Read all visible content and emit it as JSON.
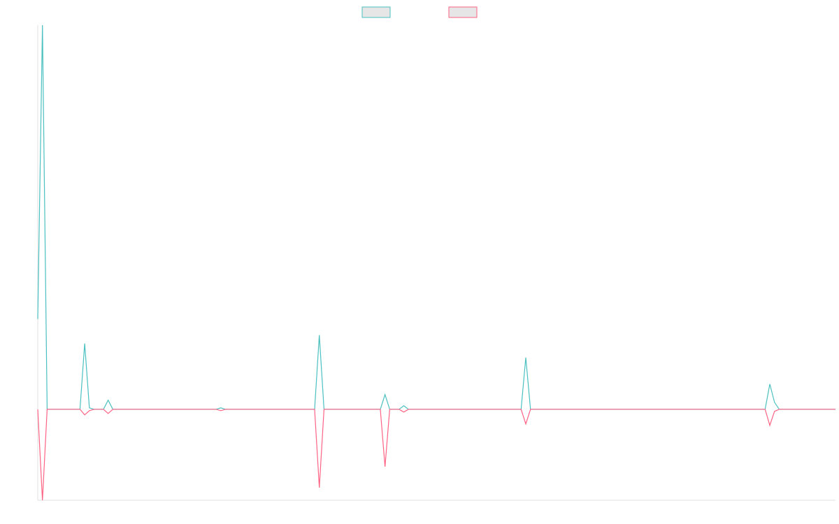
{
  "chart_data": {
    "type": "line",
    "x": [
      0,
      1,
      2,
      9,
      10,
      11,
      12,
      14,
      15,
      16,
      38,
      39,
      40,
      59,
      60,
      61,
      73,
      74,
      75,
      77,
      78,
      79,
      103,
      104,
      105,
      155,
      156,
      157,
      158,
      170
    ],
    "series": [
      {
        "color": "#4bc0c0",
        "values": [
          12.9,
          54.9,
          0,
          0,
          9.4,
          0.2,
          0,
          0,
          1.3,
          0,
          0,
          0.2,
          0,
          0,
          10.6,
          0,
          0,
          2.1,
          0,
          0,
          0.5,
          0,
          0,
          7.4,
          0,
          0,
          3.6,
          1.0,
          0,
          0
        ]
      },
      {
        "color": "#ff6384",
        "values": [
          0,
          -13.0,
          0,
          0,
          -0.8,
          -0.2,
          0,
          0,
          -0.6,
          0,
          0,
          -0.2,
          0,
          0,
          -11.2,
          0,
          0,
          -8.2,
          0,
          0,
          -0.4,
          0,
          0,
          -2.1,
          0,
          0,
          -2.3,
          -0.3,
          0,
          0
        ]
      }
    ],
    "xlim": [
      0,
      170
    ],
    "ylim": [
      -13.0,
      54.9
    ]
  }
}
